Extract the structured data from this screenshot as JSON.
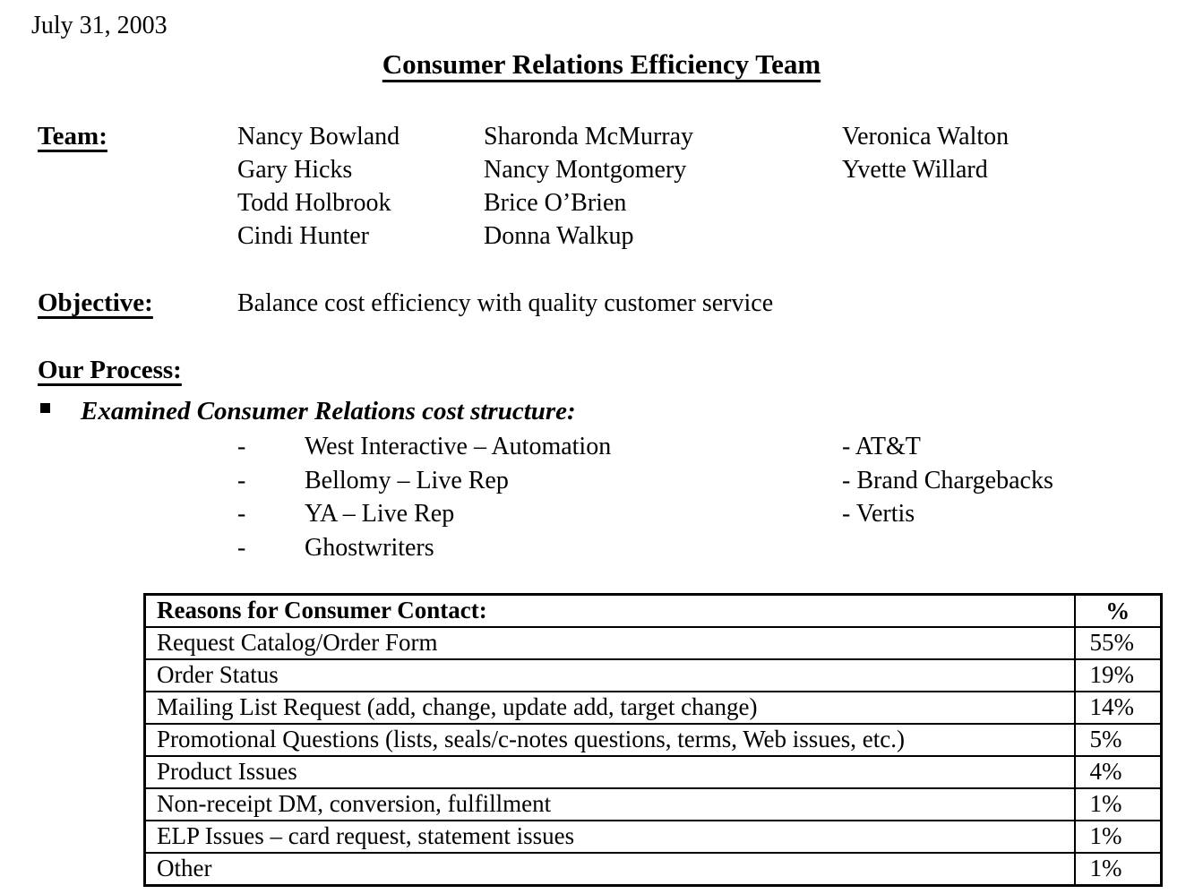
{
  "document": {
    "date": "July 31, 2003",
    "title": "Consumer Relations Efficiency Team"
  },
  "team": {
    "label": "Team:",
    "columns": [
      [
        "Nancy Bowland",
        "Gary Hicks",
        "Todd Holbrook",
        "Cindi Hunter"
      ],
      [
        "Sharonda McMurray",
        "Nancy Montgomery",
        "Brice O’Brien",
        "Donna Walkup"
      ],
      [
        "Veronica Walton",
        "Yvette Willard"
      ]
    ]
  },
  "objective": {
    "label": "Objective:",
    "text": "Balance cost efficiency with quality customer service"
  },
  "process": {
    "label": "Our Process:",
    "bullet_item": "Examined Consumer Relations cost structure:",
    "cost_items_left": [
      "West Interactive – Automation",
      "Bellomy – Live Rep",
      "YA – Live Rep",
      "Ghostwriters"
    ],
    "cost_items_right": [
      "AT&T",
      "Brand Chargebacks",
      "Vertis"
    ]
  },
  "table": {
    "headers": {
      "reason": "Reasons for Consumer Contact:",
      "percent": "%"
    },
    "rows": [
      {
        "reason": "Request Catalog/Order Form",
        "percent": "55%"
      },
      {
        "reason": "Order Status",
        "percent": "19%"
      },
      {
        "reason": "Mailing List Request (add, change, update add, target change)",
        "percent": "14%"
      },
      {
        "reason": "Promotional Questions (lists, seals/c-notes questions, terms, Web issues, etc.)",
        "percent": "5%"
      },
      {
        "reason": "Product Issues",
        "percent": "4%"
      },
      {
        "reason": "Non-receipt DM, conversion, fulfillment",
        "percent": "1%"
      },
      {
        "reason": "ELP Issues – card request, statement issues",
        "percent": "1%"
      },
      {
        "reason": "Other",
        "percent": "1%"
      }
    ]
  }
}
